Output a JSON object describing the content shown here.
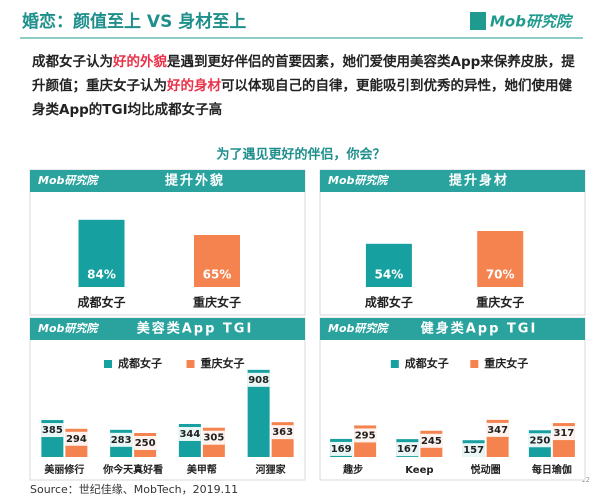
{
  "header": {
    "title": "婚恋：颜值至上 VS 身材至上",
    "logo": "Mob研究院"
  },
  "paragraph": [
    "成都女子认为",
    "好的外貌",
    "是遇到更好伴侣的首要因素，她们爱使用美容类App来保养皮肤，提升颜值；重庆女子认为",
    "好的身材",
    "可以体现自己的自律，更能吸引到优秀的异性，她们使用健身类App的TGI均比成都女子高"
  ],
  "question": "为了遇见更好的伴侣，你会？",
  "chart_data": [
    {
      "type": "bar",
      "title": "提升外貌",
      "categories": [
        "成都女子",
        "重庆女子"
      ],
      "values": [
        84,
        65
      ],
      "value_labels": [
        "84%",
        "65%"
      ],
      "colors": [
        "#17a0a0",
        "#f5834f"
      ]
    },
    {
      "type": "bar",
      "title": "提升身材",
      "categories": [
        "成都女子",
        "重庆女子"
      ],
      "values": [
        54,
        70
      ],
      "value_labels": [
        "54%",
        "70%"
      ],
      "colors": [
        "#17a0a0",
        "#f5834f"
      ]
    },
    {
      "type": "grouped_bar",
      "title": "美容类App TGI",
      "categories": [
        "美丽修行",
        "你今天真好看",
        "美甲帮",
        "河狸家"
      ],
      "series": [
        {
          "name": "成都女子",
          "color": "#17a0a0",
          "values": [
            385,
            283,
            344,
            908
          ]
        },
        {
          "name": "重庆女子",
          "color": "#f5834f",
          "values": [
            294,
            250,
            305,
            363
          ]
        }
      ]
    },
    {
      "type": "grouped_bar",
      "title": "健身类App TGI",
      "categories": [
        "趣步",
        "Keep",
        "悦动圈",
        "每日瑜伽"
      ],
      "series": [
        {
          "name": "成都女子",
          "color": "#17a0a0",
          "values": [
            169,
            167,
            157,
            250
          ]
        },
        {
          "name": "重庆女子",
          "color": "#f5834f",
          "values": [
            295,
            245,
            347,
            317
          ]
        }
      ]
    }
  ],
  "footer": {
    "source": "Source：世纪佳缘、MobTech，2019.11",
    "page": "12"
  }
}
